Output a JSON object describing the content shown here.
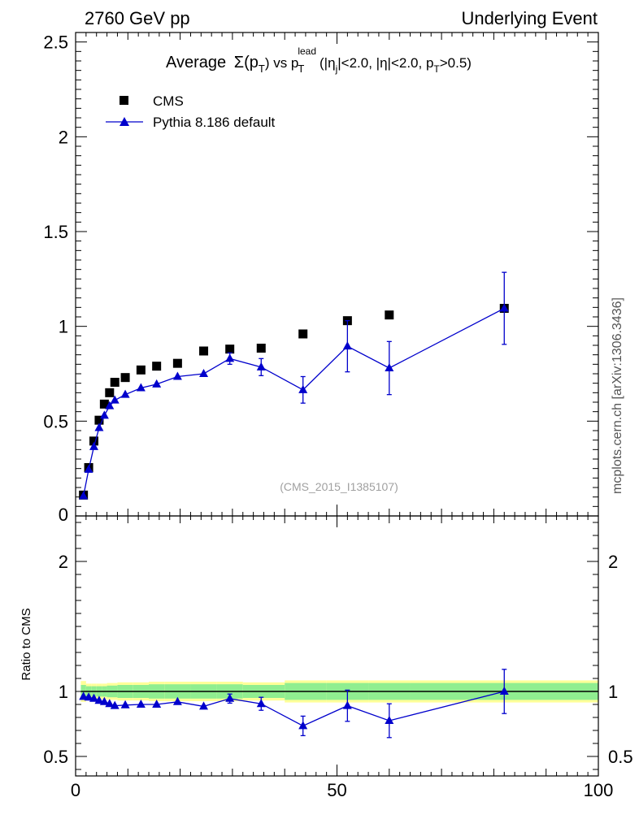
{
  "header": {
    "left": "2760 GeV pp",
    "right": "Underlying Event"
  },
  "side_note": "mcplots.cern.ch [arXiv:1306.3436]",
  "watermark": "(CMS_2015_I1385107)",
  "title": {
    "lead": "Average",
    "sigma": "Σ(p",
    "sub_T": "T",
    "vs": ") vs p",
    "sup_lead": "lead",
    "paren": "(|η",
    "sub_j": "j",
    "mid": "|<2.0, |η|<2.0, p",
    "tail": ">0.5)"
  },
  "ratio_ylabel": "Ratio to CMS",
  "colors": {
    "data": "#000000",
    "mc": "#0000cc",
    "band_inner": "#90ee90",
    "band_outer": "#ffff99"
  },
  "chart_data": [
    {
      "type": "scatter",
      "panel": "main",
      "xlim": [
        0,
        100
      ],
      "ylim": [
        0,
        2.55
      ],
      "y_ticks": [
        0.5,
        1,
        1.5,
        2,
        2.5
      ],
      "y_tick_labels": [
        "0.5",
        "1",
        "1.5",
        "2",
        "2.5"
      ],
      "y_zero_label": "0",
      "legend": [
        "CMS",
        "Pythia 8.186 default"
      ],
      "legend_position": "top-left",
      "series": [
        {
          "name": "CMS",
          "marker": "square",
          "x": [
            1.5,
            2.5,
            3.5,
            4.5,
            5.5,
            6.5,
            7.5,
            9.5,
            12.5,
            15.5,
            19.5,
            24.5,
            29.5,
            35.5,
            43.5,
            52,
            60,
            82
          ],
          "y": [
            0.11,
            0.255,
            0.395,
            0.505,
            0.59,
            0.65,
            0.705,
            0.73,
            0.77,
            0.79,
            0.805,
            0.87,
            0.88,
            0.885,
            0.96,
            1.03,
            1.06,
            1.095
          ]
        },
        {
          "name": "Pythia 8.186 default",
          "marker": "triangle",
          "x": [
            1.5,
            2.5,
            3.5,
            4.5,
            5.5,
            6.5,
            7.5,
            9.5,
            12.5,
            15.5,
            19.5,
            24.5,
            29.5,
            35.5,
            43.5,
            52,
            60,
            82
          ],
          "y": [
            0.105,
            0.245,
            0.365,
            0.465,
            0.53,
            0.58,
            0.61,
            0.64,
            0.675,
            0.695,
            0.735,
            0.75,
            0.83,
            0.785,
            0.665,
            0.895,
            0.78,
            1.095
          ],
          "err": [
            0,
            0,
            0,
            0,
            0,
            0,
            0,
            0,
            0,
            0,
            0,
            0,
            0.03,
            0.045,
            0.07,
            0.135,
            0.14,
            0.19
          ]
        }
      ]
    },
    {
      "type": "scatter",
      "panel": "ratio",
      "xlim": [
        0,
        100
      ],
      "ylim": [
        0.35,
        2.35
      ],
      "x_ticks": [
        0,
        50,
        100
      ],
      "x_tick_labels": [
        "0",
        "50",
        "100"
      ],
      "y_ticks": [
        0.5,
        1,
        2
      ],
      "y_tick_labels": [
        "0.5",
        "1",
        "2"
      ],
      "ylabel": "Ratio to CMS",
      "band_edges": [
        1,
        2,
        3,
        4,
        5,
        6,
        7,
        8,
        11,
        14,
        17,
        22,
        27,
        32,
        40,
        48,
        56,
        64,
        100
      ],
      "band_inner_half": [
        0.05,
        0.04,
        0.04,
        0.04,
        0.04,
        0.045,
        0.045,
        0.05,
        0.05,
        0.055,
        0.055,
        0.055,
        0.055,
        0.05,
        0.065,
        0.065,
        0.065,
        0.065
      ],
      "band_outer_half": [
        0.08,
        0.06,
        0.06,
        0.06,
        0.06,
        0.065,
        0.065,
        0.07,
        0.07,
        0.075,
        0.075,
        0.075,
        0.075,
        0.07,
        0.085,
        0.085,
        0.085,
        0.085
      ],
      "series": [
        {
          "name": "Pythia 8.186 default",
          "marker": "triangle",
          "x": [
            1.5,
            2.5,
            3.5,
            4.5,
            5.5,
            6.5,
            7.5,
            9.5,
            12.5,
            15.5,
            19.5,
            24.5,
            29.5,
            35.5,
            43.5,
            52,
            60,
            82
          ],
          "y": [
            0.96,
            0.955,
            0.945,
            0.93,
            0.92,
            0.905,
            0.89,
            0.895,
            0.9,
            0.9,
            0.92,
            0.885,
            0.945,
            0.905,
            0.735,
            0.89,
            0.775,
            1.0
          ],
          "err": [
            0,
            0,
            0,
            0,
            0,
            0,
            0,
            0,
            0,
            0,
            0,
            0,
            0.035,
            0.05,
            0.075,
            0.12,
            0.13,
            0.17
          ]
        }
      ]
    }
  ]
}
